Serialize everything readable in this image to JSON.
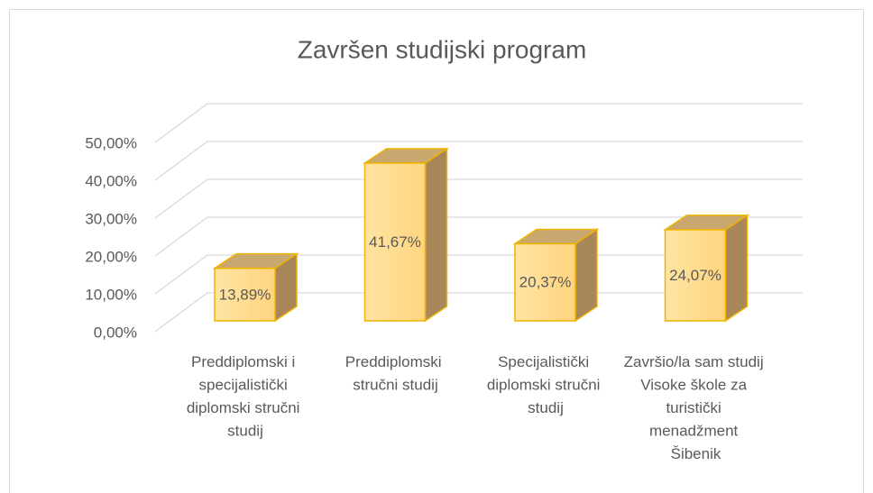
{
  "chart_data": {
    "type": "bar3d",
    "title": "Završen studijski program",
    "categories": [
      "Preddiplomski i specijalistički diplomski stručni studij",
      "Preddiplomski stručni studij",
      "Specijalistički diplomski stručni studij",
      "Završio/la sam studij Visoke škole za turistički menadžment Šibenik"
    ],
    "values": [
      13.89,
      41.67,
      20.37,
      24.07
    ],
    "value_labels": [
      "13,89%",
      "41,67%",
      "20,37%",
      "24,07%"
    ],
    "color": "#ffd98a",
    "ylim": [
      0,
      50
    ],
    "yticks": [
      {
        "value": 0,
        "label": "0,00%"
      },
      {
        "value": 10,
        "label": "10,00%"
      },
      {
        "value": 20,
        "label": "20,00%"
      },
      {
        "value": 30,
        "label": "30,00%"
      },
      {
        "value": 40,
        "label": "40,00%"
      },
      {
        "value": 50,
        "label": "50,00%"
      }
    ],
    "grid": true
  }
}
